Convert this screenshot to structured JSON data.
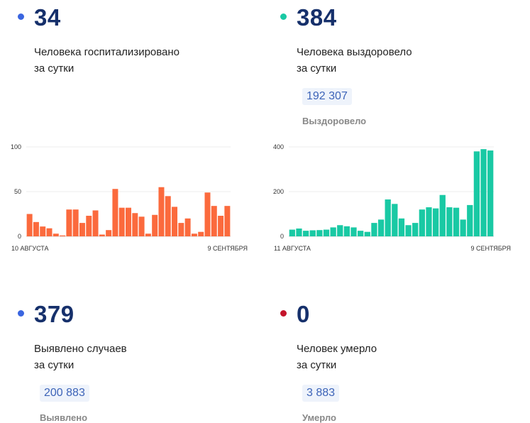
{
  "stats": {
    "hospitalized": {
      "value": "34",
      "label_line1": "Человека госпитализировано",
      "label_line2": "за сутки",
      "color": "#3a65e0"
    },
    "recovered": {
      "value": "384",
      "label_line1": "Человека выздоровело",
      "label_line2": "за сутки",
      "total": "192 307",
      "total_label": "Выздоровело",
      "color": "#19c9a4"
    },
    "detected": {
      "value": "379",
      "label_line1": "Выявлено случаев",
      "label_line2": "за сутки",
      "total": "200 883",
      "total_label": "Выявлено",
      "color": "#3a65e0"
    },
    "died": {
      "value": "0",
      "label_line1": "Человек умерло",
      "label_line2": "за сутки",
      "total": "3 883",
      "total_label": "Умерло",
      "color": "#c4142b"
    }
  },
  "chart_data": [
    {
      "type": "bar",
      "color": "#fb6a3d",
      "ylim": [
        0,
        100
      ],
      "yticks": [
        "100",
        "50",
        "0"
      ],
      "ytick_values": [
        100,
        50,
        0
      ],
      "x_start_label": "10 АВГУСТА",
      "x_end_label": "9 СЕНТЯБРЯ",
      "values": [
        25,
        16,
        11,
        9,
        3,
        1,
        30,
        30,
        15,
        23,
        29,
        2,
        7,
        53,
        32,
        32,
        26,
        22,
        3,
        24,
        55,
        45,
        33,
        15,
        20,
        3,
        5,
        49,
        34,
        23,
        34
      ],
      "grid": true
    },
    {
      "type": "bar",
      "color": "#19c9a4",
      "ylim": [
        0,
        400
      ],
      "yticks": [
        "400",
        "200",
        "0"
      ],
      "ytick_values": [
        400,
        200,
        0
      ],
      "x_start_label": "11 АВГУСТА",
      "x_end_label": "9 СЕНТЯБРЯ",
      "values": [
        30,
        35,
        25,
        27,
        28,
        30,
        40,
        50,
        45,
        40,
        25,
        20,
        60,
        75,
        165,
        145,
        80,
        50,
        60,
        120,
        130,
        125,
        185,
        130,
        128,
        75,
        140,
        380,
        390,
        384
      ],
      "grid": true
    }
  ]
}
